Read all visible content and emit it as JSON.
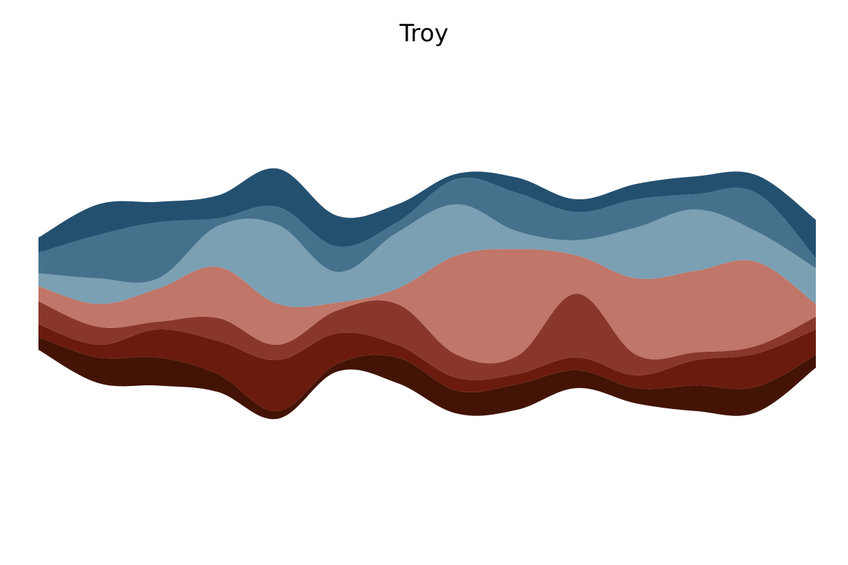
{
  "chart_data": {
    "type": "area",
    "subtype": "streamgraph",
    "title": "Troy",
    "xlabel": "",
    "ylabel": "",
    "axes_visible": false,
    "grid": false,
    "legend": "none",
    "x": [
      0,
      1,
      2,
      3,
      4,
      5,
      6,
      7,
      8,
      9,
      10,
      11,
      12,
      13
    ],
    "series": [
      {
        "color": "#431405",
        "values": [
          0.5,
          1.0,
          1.1,
          0.7,
          0.3,
          0.3,
          1.0,
          0.9,
          1.0,
          0.7,
          0.6,
          1.0,
          1.0,
          0.5
        ]
      },
      {
        "color": "#6a1b0e",
        "values": [
          0.5,
          0.5,
          1.1,
          1.3,
          2.0,
          1.2,
          0.5,
          0.5,
          0.4,
          0.5,
          0.5,
          1.0,
          1.3,
          1.0
        ]
      },
      {
        "color": "#8a372b",
        "values": [
          0.9,
          0.7,
          0.3,
          0.9,
          0.6,
          0.9,
          1.6,
          0.9,
          0.7,
          2.5,
          0.8,
          0.3,
          0.3,
          0.5
        ]
      },
      {
        "color": "#c07668",
        "values": [
          0.6,
          0.9,
          1.3,
          2.0,
          1.6,
          0.3,
          0.6,
          3.9,
          4.2,
          1.5,
          3.0,
          3.2,
          3.3,
          0.5
        ]
      },
      {
        "color": "#7b9fb3",
        "values": [
          0.5,
          1.0,
          0.4,
          1.6,
          3.1,
          1.2,
          2.2,
          2.0,
          0.7,
          0.6,
          2.0,
          2.4,
          1.2,
          1.4
        ]
      },
      {
        "color": "#45718c",
        "values": [
          0.8,
          1.7,
          2.2,
          0.3,
          0.7,
          1.0,
          0.4,
          1.0,
          1.5,
          1.1,
          1.1,
          0.6,
          1.5,
          0.4
        ]
      },
      {
        "color": "#245070",
        "values": [
          0.6,
          1.2,
          0.8,
          0.9,
          1.5,
          1.2,
          0.7,
          0.2,
          0.6,
          0.5,
          0.6,
          0.7,
          0.7,
          1.5
        ]
      }
    ]
  }
}
